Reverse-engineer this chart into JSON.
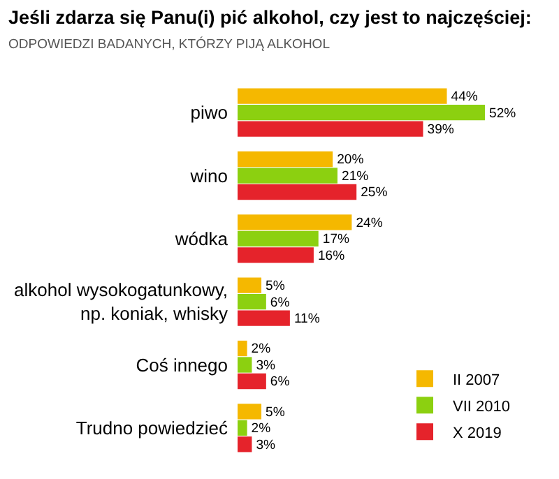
{
  "chart_data": {
    "type": "bar",
    "orientation": "horizontal",
    "title": "Jeśli zdarza się Panu(i) pić alkohol, czy jest to najczęściej:",
    "subtitle": "ODPOWIEDZI BADANYCH, KTÓRZY PIJĄ ALKOHOL",
    "categories": [
      "piwo",
      "wino",
      "wódka",
      "alkohol wysokogatunkowy,\nnp. koniak, whisky",
      "Coś innego",
      "Trudno powiedzieć"
    ],
    "series": [
      {
        "name": "II 2007",
        "color": "#f5b800",
        "values": [
          44,
          20,
          24,
          5,
          2,
          5
        ],
        "value_labels": [
          "44%",
          "20%",
          "24%",
          "5%",
          "2%",
          "5%"
        ]
      },
      {
        "name": "VII 2010",
        "color": "#8cd010",
        "values": [
          52,
          21,
          17,
          6,
          3,
          2
        ],
        "value_labels": [
          "52%",
          "21%",
          "17%",
          "6%",
          "3%",
          "2%"
        ]
      },
      {
        "name": "X 2019",
        "color": "#e5232b",
        "values": [
          39,
          25,
          16,
          11,
          6,
          3
        ],
        "value_labels": [
          "39%",
          "25%",
          "16%",
          "11%",
          "6%",
          "3%"
        ]
      }
    ],
    "legend": "bottom right",
    "tick_labels": "y"
  }
}
